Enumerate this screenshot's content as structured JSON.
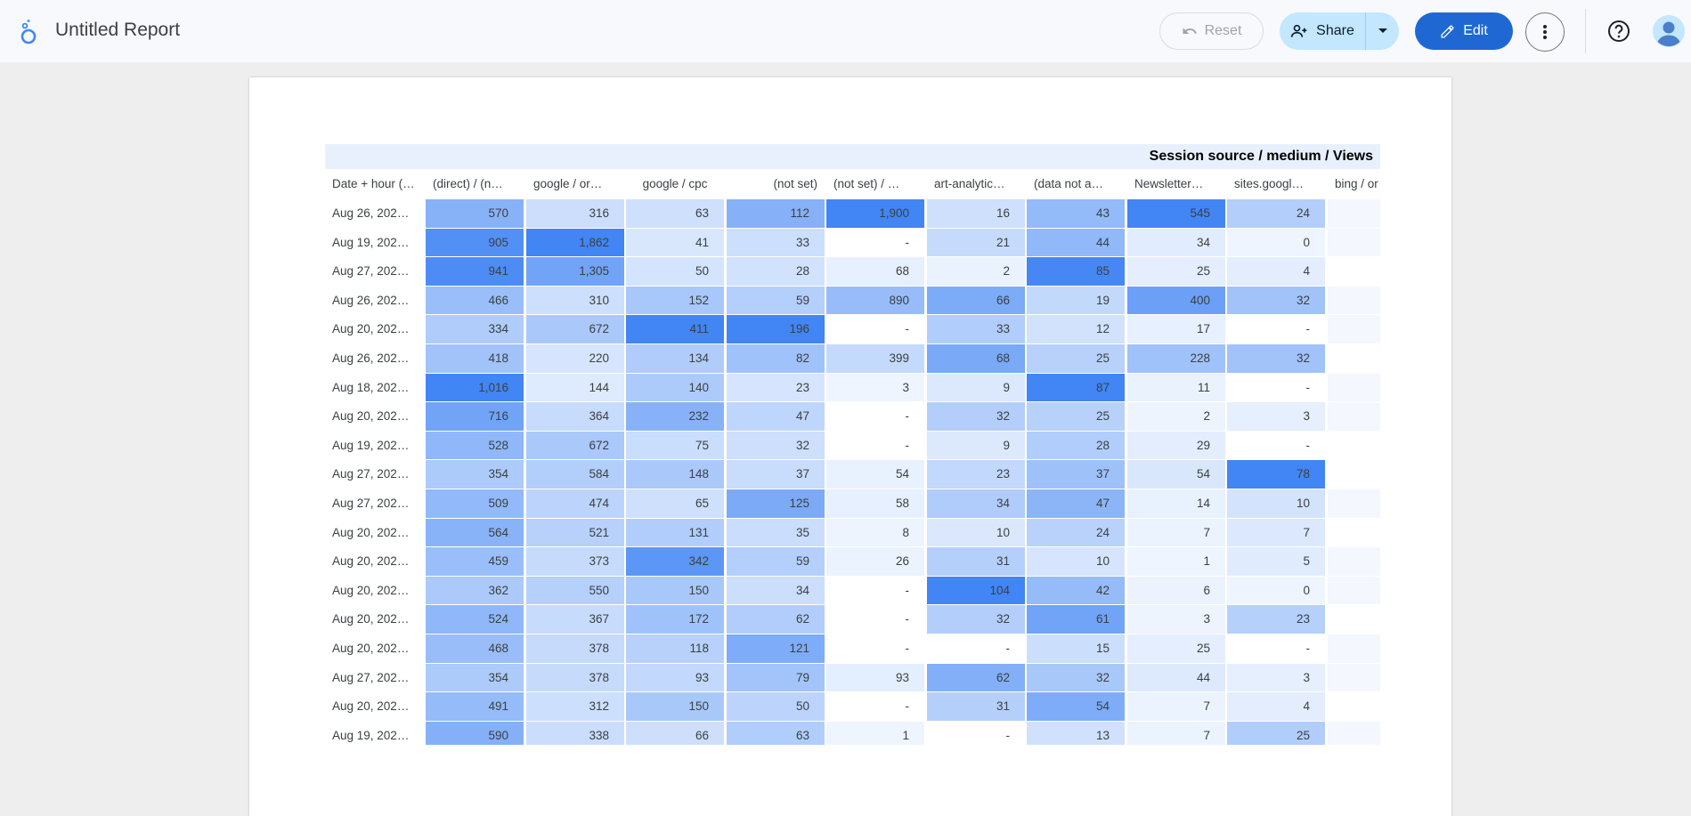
{
  "header": {
    "title": "Untitled Report",
    "reset_label": "Reset",
    "share_label": "Share",
    "edit_label": "Edit"
  },
  "colors": {
    "accent": "#1f68d4",
    "share_bg": "#c2e7ff",
    "heat_max": "#4285f4",
    "heat_min": "#f8fbff"
  },
  "table": {
    "pivot_label": "Session source / medium / Views",
    "row_dimension_label": "Date + hour (…",
    "columns": [
      "(direct) / (n…",
      "google / or…",
      "google / cpc",
      "(not set)",
      "(not set) / …",
      "art-analytic…",
      "(data not a…",
      "Newsletter…",
      "sites.googl…",
      "bing / or"
    ],
    "rows": [
      {
        "date": "Aug 26, 202…",
        "values": [
          "570",
          "316",
          "63",
          "112",
          "1,900",
          "16",
          "43",
          "545",
          "24",
          ""
        ]
      },
      {
        "date": "Aug 19, 202…",
        "values": [
          "905",
          "1,862",
          "41",
          "33",
          "-",
          "21",
          "44",
          "34",
          "0",
          ""
        ]
      },
      {
        "date": "Aug 27, 202…",
        "values": [
          "941",
          "1,305",
          "50",
          "28",
          "68",
          "2",
          "85",
          "25",
          "4",
          ""
        ]
      },
      {
        "date": "Aug 26, 202…",
        "values": [
          "466",
          "310",
          "152",
          "59",
          "890",
          "66",
          "19",
          "400",
          "32",
          ""
        ]
      },
      {
        "date": "Aug 20, 202…",
        "values": [
          "334",
          "672",
          "411",
          "196",
          "-",
          "33",
          "12",
          "17",
          "-",
          ""
        ]
      },
      {
        "date": "Aug 26, 202…",
        "values": [
          "418",
          "220",
          "134",
          "82",
          "399",
          "68",
          "25",
          "228",
          "32",
          ""
        ]
      },
      {
        "date": "Aug 18, 202…",
        "values": [
          "1,016",
          "144",
          "140",
          "23",
          "3",
          "9",
          "87",
          "11",
          "-",
          ""
        ]
      },
      {
        "date": "Aug 20, 202…",
        "values": [
          "716",
          "364",
          "232",
          "47",
          "-",
          "32",
          "25",
          "2",
          "3",
          ""
        ]
      },
      {
        "date": "Aug 19, 202…",
        "values": [
          "528",
          "672",
          "75",
          "32",
          "-",
          "9",
          "28",
          "29",
          "-",
          ""
        ]
      },
      {
        "date": "Aug 27, 202…",
        "values": [
          "354",
          "584",
          "148",
          "37",
          "54",
          "23",
          "37",
          "54",
          "78",
          ""
        ]
      },
      {
        "date": "Aug 27, 202…",
        "values": [
          "509",
          "474",
          "65",
          "125",
          "58",
          "34",
          "47",
          "14",
          "10",
          ""
        ]
      },
      {
        "date": "Aug 20, 202…",
        "values": [
          "564",
          "521",
          "131",
          "35",
          "8",
          "10",
          "24",
          "7",
          "7",
          ""
        ]
      },
      {
        "date": "Aug 20, 202…",
        "values": [
          "459",
          "373",
          "342",
          "59",
          "26",
          "31",
          "10",
          "1",
          "5",
          ""
        ]
      },
      {
        "date": "Aug 20, 202…",
        "values": [
          "362",
          "550",
          "150",
          "34",
          "-",
          "104",
          "42",
          "6",
          "0",
          ""
        ]
      },
      {
        "date": "Aug 20, 202…",
        "values": [
          "524",
          "367",
          "172",
          "62",
          "-",
          "32",
          "61",
          "3",
          "23",
          ""
        ]
      },
      {
        "date": "Aug 20, 202…",
        "values": [
          "468",
          "378",
          "118",
          "121",
          "-",
          "-",
          "15",
          "25",
          "-",
          ""
        ]
      },
      {
        "date": "Aug 27, 202…",
        "values": [
          "354",
          "378",
          "93",
          "79",
          "93",
          "62",
          "32",
          "44",
          "3",
          ""
        ]
      },
      {
        "date": "Aug 20, 202…",
        "values": [
          "491",
          "312",
          "150",
          "50",
          "-",
          "31",
          "54",
          "7",
          "4",
          ""
        ]
      },
      {
        "date": "Aug 19, 202…",
        "values": [
          "590",
          "338",
          "66",
          "63",
          "1",
          "-",
          "13",
          "7",
          "25",
          ""
        ]
      }
    ]
  }
}
